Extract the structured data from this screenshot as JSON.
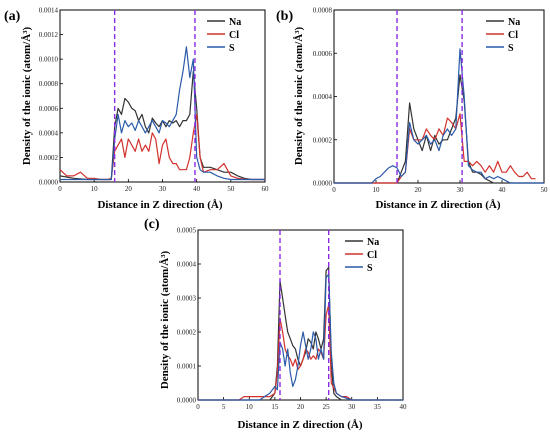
{
  "series_colors": {
    "Na": "#333333",
    "Cl": "#d2322d",
    "S": "#2a5aa8"
  },
  "divider_color": "#8a2be2",
  "chart_data": [
    {
      "type": "line",
      "panel": "(a)",
      "xlabel": "Distance in Z direction (Å)",
      "ylabel": "Density of the ionic (atom/Å³)",
      "xlim": [
        0,
        60
      ],
      "ylim": [
        0,
        0.0014
      ],
      "xticks": [
        0,
        10,
        20,
        30,
        40,
        50,
        60
      ],
      "xtick_labels": [
        "0",
        "10",
        "20",
        "30",
        "40",
        "50",
        "60"
      ],
      "yticks": [
        0,
        0.0002,
        0.0004,
        0.0006,
        0.0008,
        0.001,
        0.0012,
        0.0014
      ],
      "ytick_labels": [
        "0.0000",
        "0.0002",
        "0.0004",
        "0.0006",
        "0.0008",
        "0.0010",
        "0.0012",
        "0.0014"
      ],
      "vlines": [
        16,
        39.5
      ],
      "legend": "top-right",
      "series": [
        {
          "name": "Na",
          "x": [
            0,
            4,
            8,
            12,
            15,
            16,
            17,
            18,
            19,
            20,
            21,
            22,
            23,
            24,
            25,
            26,
            27,
            28,
            29,
            30,
            31,
            32,
            33,
            34,
            35,
            36,
            37,
            38,
            39,
            40,
            41,
            42,
            44,
            46,
            48,
            50,
            52,
            54,
            56,
            58,
            60
          ],
          "y": [
            5e-05,
            3e-05,
            2e-05,
            2e-05,
            2e-05,
            0.00045,
            0.0006,
            0.00055,
            0.00068,
            0.00065,
            0.0006,
            0.00058,
            0.0005,
            0.00055,
            0.00045,
            0.0004,
            0.00052,
            0.00048,
            0.00045,
            0.0005,
            0.00045,
            0.0005,
            0.00048,
            0.0005,
            0.00045,
            0.0005,
            0.0005,
            0.00055,
            0.0009,
            0.0006,
            0.0002,
            0.00012,
            0.00012,
            0.0001,
            8e-05,
            8e-05,
            5e-05,
            3e-05,
            2e-05,
            2e-05,
            2e-05
          ]
        },
        {
          "name": "Cl",
          "x": [
            0,
            2,
            4,
            6,
            8,
            10,
            12,
            14,
            15,
            16,
            17,
            18,
            19,
            20,
            21,
            22,
            23,
            24,
            25,
            26,
            27,
            28,
            29,
            30,
            31,
            32,
            33,
            34,
            35,
            36,
            37,
            38,
            39,
            40,
            41,
            42,
            44,
            46,
            48,
            50,
            52,
            55,
            58,
            60
          ],
          "y": [
            0.0001,
            5e-05,
            5e-05,
            8e-05,
            3e-05,
            3e-05,
            2e-05,
            2e-05,
            3e-05,
            0.00025,
            0.0003,
            0.00035,
            0.0002,
            0.00035,
            0.0003,
            0.00025,
            0.00035,
            0.00025,
            0.0003,
            0.00025,
            0.0004,
            0.00035,
            0.00015,
            0.0003,
            0.00035,
            0.0002,
            0.00015,
            0.00015,
            0.0001,
            0.0001,
            0.0001,
            0.0002,
            0.0004,
            0.00055,
            0.0002,
            8e-05,
            0.0001,
            0.0001,
            0.00015,
            5e-05,
            3e-05,
            2e-05,
            2e-05,
            2e-05
          ]
        },
        {
          "name": "S",
          "x": [
            0,
            4,
            8,
            12,
            15,
            16,
            17,
            18,
            19,
            20,
            21,
            22,
            23,
            24,
            25,
            26,
            27,
            28,
            29,
            30,
            31,
            32,
            33,
            34,
            35,
            36,
            37,
            38,
            39,
            40,
            41,
            42,
            44,
            46,
            48,
            50,
            52,
            54,
            56,
            58,
            60
          ],
          "y": [
            2e-05,
            2e-05,
            2e-05,
            2e-05,
            2e-05,
            0.00035,
            0.00055,
            0.0004,
            0.0005,
            0.00045,
            0.00048,
            0.00042,
            0.0005,
            0.00045,
            0.0004,
            0.00045,
            0.0005,
            0.00045,
            0.0004,
            0.0005,
            0.00048,
            0.00045,
            0.0005,
            0.00055,
            0.00075,
            0.0009,
            0.0011,
            0.00085,
            0.001,
            0.0002,
            0.0001,
            8e-05,
            8e-05,
            5e-05,
            3e-05,
            2e-05,
            2e-05,
            2e-05,
            2e-05,
            2e-05,
            2e-05
          ]
        }
      ]
    },
    {
      "type": "line",
      "panel": "(b)",
      "xlabel": "Distance in Z direction (Å)",
      "ylabel": "Density of the ionic (atom/Å³)",
      "xlim": [
        0,
        50
      ],
      "ylim": [
        0,
        0.0008
      ],
      "xticks": [
        0,
        10,
        20,
        30,
        40,
        50
      ],
      "xtick_labels": [
        "0",
        "10",
        "20",
        "30",
        "40",
        "50"
      ],
      "yticks": [
        0,
        0.0002,
        0.0004,
        0.0006,
        0.0008
      ],
      "ytick_labels": [
        "0.0000",
        "0.0002",
        "0.0004",
        "0.0006",
        "0.0008"
      ],
      "vlines": [
        15,
        30.5
      ],
      "legend": "top-right",
      "series": [
        {
          "name": "Na",
          "x": [
            0,
            10,
            15,
            16,
            17,
            18,
            19,
            20,
            21,
            22,
            23,
            24,
            25,
            26,
            27,
            28,
            29,
            30,
            31,
            32,
            33,
            34,
            35,
            36,
            38,
            40,
            42,
            45,
            50
          ],
          "y": [
            0,
            0,
            0,
            5e-05,
            0.0001,
            0.00037,
            0.00025,
            0.0002,
            0.00015,
            0.00022,
            0.00015,
            0.00022,
            0.00018,
            0.0002,
            0.0002,
            0.00025,
            0.0003,
            0.0005,
            0.00038,
            0.0001,
            5e-05,
            5e-05,
            4e-05,
            2e-05,
            0,
            0,
            0,
            0,
            0
          ]
        },
        {
          "name": "Cl",
          "x": [
            0,
            10,
            15,
            16,
            17,
            18,
            19,
            20,
            21,
            22,
            23,
            24,
            25,
            26,
            27,
            28,
            29,
            30,
            31,
            32,
            33,
            34,
            35,
            36,
            37,
            38,
            39,
            40,
            41,
            42,
            43,
            44,
            45,
            46,
            47,
            48
          ],
          "y": [
            0,
            0,
            0,
            3e-05,
            5e-05,
            0.00025,
            0.0002,
            0.0002,
            0.0002,
            0.00025,
            0.00022,
            0.0002,
            0.00025,
            0.00022,
            0.0003,
            0.00028,
            0.00025,
            0.00032,
            0.0001,
            0.0001,
            8e-05,
            0.0001,
            8e-05,
            5e-05,
            8e-05,
            5e-05,
            0.0001,
            5e-05,
            5e-05,
            8e-05,
            5e-05,
            3e-05,
            3e-05,
            5e-05,
            2e-05,
            2e-05
          ]
        },
        {
          "name": "S",
          "x": [
            0,
            9,
            10,
            11,
            12,
            13,
            14,
            15,
            16,
            17,
            18,
            19,
            20,
            21,
            22,
            23,
            24,
            25,
            26,
            27,
            28,
            29,
            30,
            31,
            32,
            33,
            34,
            35,
            36,
            37,
            38,
            39,
            40,
            42,
            45,
            50
          ],
          "y": [
            0,
            0,
            2e-05,
            3e-05,
            5e-05,
            7e-05,
            8e-05,
            7e-05,
            3e-05,
            5e-05,
            0.00028,
            0.0002,
            0.00018,
            0.0002,
            0.00022,
            0.00018,
            0.0002,
            0.00015,
            0.00022,
            0.00025,
            0.00022,
            0.00025,
            0.00062,
            0.0004,
            8e-05,
            6e-05,
            5e-05,
            5e-05,
            2e-05,
            3e-05,
            2e-05,
            3e-05,
            2e-05,
            0,
            0,
            0
          ]
        }
      ]
    },
    {
      "type": "line",
      "panel": "(c)",
      "xlabel": "Distance in Z direction (Å)",
      "ylabel": "Density of the ionic (atom/Å³)",
      "xlim": [
        0,
        40
      ],
      "ylim": [
        0,
        0.0005
      ],
      "xticks": [
        0,
        5,
        10,
        15,
        20,
        25,
        30,
        35,
        40
      ],
      "xtick_labels": [
        "0",
        "5",
        "10",
        "15",
        "20",
        "25",
        "30",
        "35",
        "40"
      ],
      "yticks": [
        0,
        0.0001,
        0.0002,
        0.0003,
        0.0004,
        0.0005
      ],
      "ytick_labels": [
        "0.0000",
        "0.0001",
        "0.0002",
        "0.0003",
        "0.0004",
        "0.0005"
      ],
      "vlines": [
        16,
        25.5
      ],
      "legend": "top-right",
      "series": [
        {
          "name": "Na",
          "x": [
            0,
            14,
            15,
            15.5,
            16,
            16.5,
            17,
            17.5,
            18,
            18.5,
            19,
            19.5,
            20,
            20.5,
            21,
            21.5,
            22,
            22.5,
            23,
            23.5,
            24,
            24.5,
            25,
            25.5,
            26,
            26.5,
            27,
            28,
            30,
            40
          ],
          "y": [
            0,
            0,
            2e-05,
            0.0001,
            0.00035,
            0.0003,
            0.00025,
            0.0002,
            0.00018,
            0.00016,
            0.00015,
            0.00012,
            0.0001,
            0.00012,
            0.00014,
            0.00018,
            0.00017,
            0.00015,
            0.0002,
            0.00018,
            0.00015,
            0.00018,
            0.00038,
            0.00039,
            0.0001,
            2e-05,
            1e-05,
            0,
            0,
            0
          ]
        },
        {
          "name": "Cl",
          "x": [
            0,
            8,
            9,
            10,
            11,
            12,
            13,
            14,
            15,
            15.5,
            16,
            16.5,
            17,
            17.5,
            18,
            18.5,
            19,
            19.5,
            20,
            20.5,
            21,
            21.5,
            22,
            22.5,
            23,
            23.5,
            24,
            24.5,
            25,
            25.5,
            26,
            27,
            28,
            29,
            30,
            40
          ],
          "y": [
            0,
            0,
            1e-05,
            1e-05,
            1e-05,
            1e-05,
            1e-05,
            1e-05,
            2e-05,
            8e-05,
            0.00024,
            0.0002,
            0.00015,
            0.00013,
            0.00012,
            0.0001,
            0.00012,
            9e-05,
            0.0001,
            0.00012,
            0.00015,
            0.00014,
            0.00012,
            0.00013,
            0.00012,
            0.00015,
            0.00014,
            0.00012,
            0.00025,
            0.00028,
            5e-05,
            2e-05,
            1e-05,
            1e-05,
            0,
            0
          ]
        },
        {
          "name": "S",
          "x": [
            0,
            12,
            13,
            14,
            15,
            15.5,
            16,
            16.5,
            17,
            17.5,
            18,
            18.5,
            19,
            19.5,
            20,
            20.5,
            21,
            21.5,
            22,
            22.5,
            23,
            23.5,
            24,
            24.5,
            25,
            25.5,
            26,
            26.5,
            27,
            28,
            30,
            40
          ],
          "y": [
            0,
            0,
            1e-05,
            2e-05,
            4e-05,
            3e-05,
            0.00017,
            0.00015,
            0.0001,
            0.00015,
            8e-05,
            4e-05,
            6e-05,
            0.0001,
            0.00016,
            0.0002,
            0.00016,
            0.00012,
            0.00015,
            0.0002,
            0.00018,
            0.00012,
            0.00015,
            0.00012,
            0.00036,
            0.00037,
            0.00014,
            5e-05,
            2e-05,
            1e-05,
            0,
            0
          ]
        }
      ]
    }
  ]
}
